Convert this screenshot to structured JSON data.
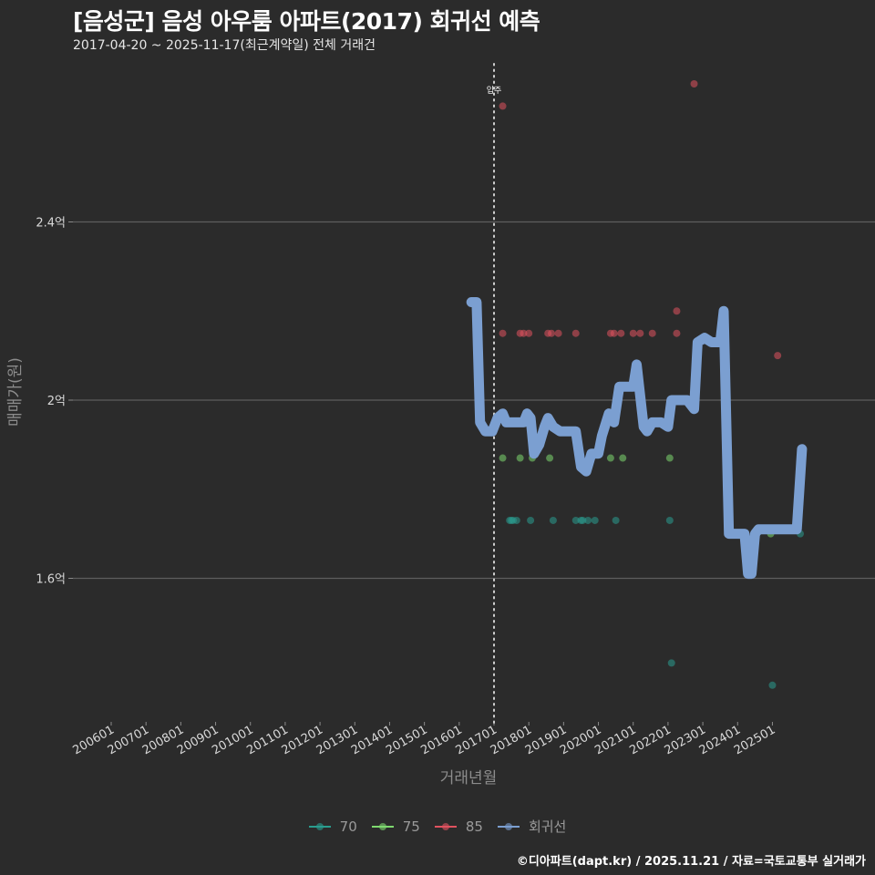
{
  "header": {
    "title": "[음성군] 음성 아우룸 아파트(2017) 회귀선 예측",
    "subtitle": "2017-04-20 ~ 2025-11-17(최근계약일) 전체 거래건"
  },
  "caption": "©디아파트(dapt.kr) / 2025.11.21 / 자료=국토교통부 실거래가",
  "legend": {
    "items": [
      {
        "label": "70",
        "color": "#2a9d8f"
      },
      {
        "label": "75",
        "color": "#7ed96f"
      },
      {
        "label": "85",
        "color": "#e0525f"
      },
      {
        "label": "회귀선",
        "color": "#7b9fd1"
      }
    ]
  },
  "chart_data": {
    "type": "scatter",
    "title": "[음성군] 음성 아우룸 아파트(2017) 회귀선 예측",
    "subtitle": "2017-04-20 ~ 2025-11-17(최근계약일) 전체 거래건",
    "xlabel": "거래년월",
    "ylabel": "매매가(원)",
    "x_ticks": [
      "200601",
      "200701",
      "200801",
      "200901",
      "201001",
      "201101",
      "201201",
      "201301",
      "201401",
      "201501",
      "201601",
      "201701",
      "201801",
      "201901",
      "202001",
      "202101",
      "202201",
      "202301",
      "202401",
      "202501"
    ],
    "y_ticks": [
      {
        "value": 1.6,
        "label": "1.6억"
      },
      {
        "value": 2.0,
        "label": "2억"
      },
      {
        "value": 2.4,
        "label": "2.4억"
      }
    ],
    "ylim": [
      1.28,
      2.76
    ],
    "grid": true,
    "legend_position": "bottom",
    "annotations": [
      {
        "x": 2017.0,
        "label": "입주",
        "type": "vertical-dotted-line"
      }
    ],
    "series": [
      {
        "name": "70",
        "color": "#2a9d8f",
        "points": [
          [
            2017.45,
            1.73
          ],
          [
            2017.5,
            1.73
          ],
          [
            2017.55,
            1.73
          ],
          [
            2017.65,
            1.73
          ],
          [
            2018.05,
            1.73
          ],
          [
            2018.7,
            1.73
          ],
          [
            2019.35,
            1.73
          ],
          [
            2019.5,
            1.73
          ],
          [
            2019.55,
            1.73
          ],
          [
            2019.7,
            1.73
          ],
          [
            2019.9,
            1.73
          ],
          [
            2020.5,
            1.73
          ],
          [
            2022.05,
            1.73
          ],
          [
            2022.1,
            1.41
          ],
          [
            2025.0,
            1.36
          ],
          [
            2025.8,
            1.7
          ]
        ]
      },
      {
        "name": "75",
        "color": "#7ed96f",
        "points": [
          [
            2017.25,
            1.87
          ],
          [
            2017.75,
            1.87
          ],
          [
            2018.1,
            1.87
          ],
          [
            2018.6,
            1.87
          ],
          [
            2020.35,
            1.87
          ],
          [
            2020.7,
            1.87
          ],
          [
            2022.05,
            1.87
          ],
          [
            2024.95,
            1.7
          ]
        ]
      },
      {
        "name": "85",
        "color": "#e0525f",
        "points": [
          [
            2017.25,
            2.66
          ],
          [
            2017.25,
            2.15
          ],
          [
            2017.75,
            2.15
          ],
          [
            2017.85,
            2.15
          ],
          [
            2018.0,
            2.15
          ],
          [
            2018.55,
            2.15
          ],
          [
            2018.65,
            2.15
          ],
          [
            2018.85,
            2.15
          ],
          [
            2019.35,
            2.15
          ],
          [
            2020.35,
            2.15
          ],
          [
            2020.45,
            2.15
          ],
          [
            2020.65,
            2.15
          ],
          [
            2021.0,
            2.15
          ],
          [
            2021.2,
            2.15
          ],
          [
            2021.55,
            2.15
          ],
          [
            2022.25,
            2.15
          ],
          [
            2022.25,
            2.2
          ],
          [
            2022.75,
            2.71
          ],
          [
            2025.15,
            2.1
          ]
        ]
      },
      {
        "name": "회귀선",
        "color": "#7b9fd1",
        "type": "line",
        "points": [
          [
            2016.35,
            2.22
          ],
          [
            2016.5,
            2.22
          ],
          [
            2016.6,
            1.95
          ],
          [
            2016.75,
            1.93
          ],
          [
            2016.95,
            1.93
          ],
          [
            2017.1,
            1.96
          ],
          [
            2017.25,
            1.97
          ],
          [
            2017.35,
            1.95
          ],
          [
            2017.85,
            1.95
          ],
          [
            2017.95,
            1.97
          ],
          [
            2018.05,
            1.96
          ],
          [
            2018.15,
            1.88
          ],
          [
            2018.3,
            1.9
          ],
          [
            2018.45,
            1.94
          ],
          [
            2018.55,
            1.96
          ],
          [
            2018.7,
            1.94
          ],
          [
            2018.9,
            1.93
          ],
          [
            2019.35,
            1.93
          ],
          [
            2019.5,
            1.85
          ],
          [
            2019.65,
            1.84
          ],
          [
            2019.8,
            1.88
          ],
          [
            2020.0,
            1.88
          ],
          [
            2020.1,
            1.92
          ],
          [
            2020.3,
            1.97
          ],
          [
            2020.45,
            1.95
          ],
          [
            2020.6,
            2.03
          ],
          [
            2021.0,
            2.03
          ],
          [
            2021.1,
            2.08
          ],
          [
            2021.3,
            1.94
          ],
          [
            2021.4,
            1.93
          ],
          [
            2021.55,
            1.95
          ],
          [
            2021.8,
            1.95
          ],
          [
            2022.0,
            1.94
          ],
          [
            2022.1,
            2.0
          ],
          [
            2022.3,
            2.0
          ],
          [
            2022.55,
            2.0
          ],
          [
            2022.75,
            1.98
          ],
          [
            2022.85,
            2.13
          ],
          [
            2023.05,
            2.14
          ],
          [
            2023.25,
            2.13
          ],
          [
            2023.5,
            2.13
          ],
          [
            2023.6,
            2.2
          ],
          [
            2023.75,
            1.7
          ],
          [
            2024.2,
            1.7
          ],
          [
            2024.3,
            1.61
          ],
          [
            2024.4,
            1.61
          ],
          [
            2024.5,
            1.7
          ],
          [
            2024.6,
            1.71
          ],
          [
            2025.3,
            1.71
          ],
          [
            2025.7,
            1.71
          ],
          [
            2025.85,
            1.89
          ]
        ]
      }
    ]
  },
  "axes": {
    "xlabel": "거래년월",
    "ylabel": "매매가(원)",
    "marker_label": "입주"
  }
}
